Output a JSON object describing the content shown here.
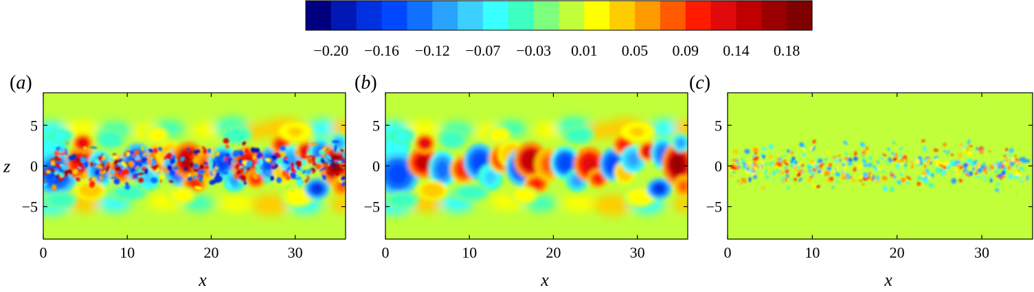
{
  "chart_data": {
    "type": "heatmap",
    "colorbar": {
      "colors": [
        "#00007f",
        "#0019b5",
        "#0030e0",
        "#0048ff",
        "#1070ff",
        "#2aa3ff",
        "#3bd0ff",
        "#39ffff",
        "#3cffc0",
        "#7dff7d",
        "#c0ff3a",
        "#ffff00",
        "#ffcc00",
        "#ff9a00",
        "#ff5a00",
        "#ff1a00",
        "#e00a0a",
        "#c00000",
        "#9a0000",
        "#7f0000"
      ],
      "tick_labels": [
        "−0.20",
        "−0.16",
        "−0.12",
        "−0.07",
        "−0.03",
        "0.01",
        "0.05",
        "0.09",
        "0.14",
        "0.18"
      ],
      "range": [
        -0.22,
        0.22
      ]
    },
    "panels": [
      {
        "tag": "(a)",
        "xlabel": "x",
        "ylabel": "z",
        "xlim": [
          0,
          36
        ],
        "ylim": [
          -9,
          9
        ],
        "xticks": [
          0,
          10,
          20,
          30
        ],
        "xtick_labels": [
          "0",
          "10",
          "20",
          "30"
        ],
        "yticks": [
          5,
          0,
          -5
        ],
        "ytick_labels": [
          "5",
          "0",
          "−5"
        ],
        "background_value": 0.0,
        "content": "large-scale plus small-scale fluctuations"
      },
      {
        "tag": "(b)",
        "xlabel": "x",
        "ylabel": "",
        "xlim": [
          0,
          36
        ],
        "ylim": [
          -9,
          9
        ],
        "xticks": [
          0,
          10,
          20,
          30
        ],
        "xtick_labels": [
          "0",
          "10",
          "20",
          "30"
        ],
        "yticks": [
          5,
          0,
          -5
        ],
        "ytick_labels": [
          "5",
          "0",
          "−5"
        ],
        "background_value": 0.0,
        "content": "large-scale fluctuations"
      },
      {
        "tag": "(c)",
        "xlabel": "x",
        "ylabel": "",
        "xlim": [
          0,
          36
        ],
        "ylim": [
          -9,
          9
        ],
        "xticks": [
          0,
          10,
          20,
          30
        ],
        "xtick_labels": [
          "0",
          "10",
          "20",
          "30"
        ],
        "yticks": [
          5,
          0,
          -5
        ],
        "ytick_labels": [
          "5",
          "0",
          "−5"
        ],
        "background_value": 0.0,
        "content": "small-scale fluctuations"
      }
    ]
  }
}
